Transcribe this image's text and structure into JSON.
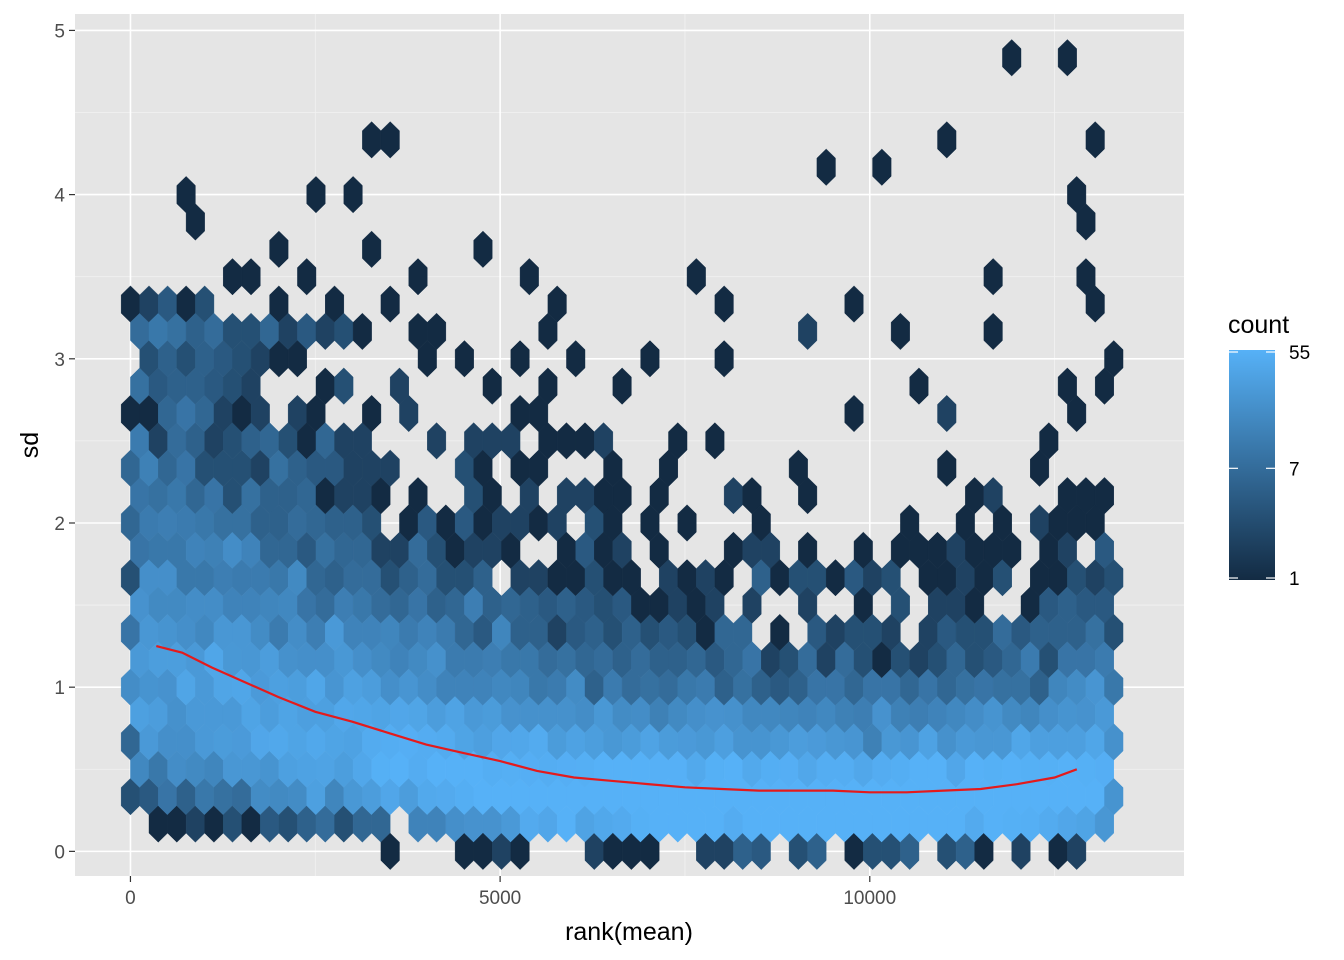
{
  "chart_data": {
    "type": "hexbin",
    "title": "",
    "xlabel": "rank(mean)",
    "ylabel": "sd",
    "xlim": [
      -750,
      14250
    ],
    "ylim": [
      -0.15,
      5.1
    ],
    "x_ticks": [
      0,
      5000,
      10000
    ],
    "x_tick_labels": [
      "0",
      "5000",
      "10000"
    ],
    "y_ticks": [
      0,
      1,
      2,
      3,
      4,
      5
    ],
    "y_tick_labels": [
      "0",
      "1",
      "2",
      "3",
      "4",
      "5"
    ],
    "grid": true,
    "panel_background": "#e5e5e5",
    "n_points": 13500,
    "hexbin_grid": {
      "x_bins": 53,
      "y_bins": 30
    },
    "fill_scale": {
      "name": "count",
      "transform": "log",
      "range": [
        1,
        55
      ],
      "breaks": [
        1,
        7,
        55
      ],
      "break_labels": [
        "1",
        "7",
        "55"
      ],
      "low_color": "#132b43",
      "high_color": "#56b1f7"
    },
    "trend_line": {
      "color": "#e41a1c",
      "points": [
        [
          350,
          1.25
        ],
        [
          700,
          1.21
        ],
        [
          1100,
          1.12
        ],
        [
          1500,
          1.04
        ],
        [
          2000,
          0.94
        ],
        [
          2500,
          0.85
        ],
        [
          3000,
          0.79
        ],
        [
          3500,
          0.72
        ],
        [
          4000,
          0.65
        ],
        [
          4500,
          0.6
        ],
        [
          5000,
          0.55
        ],
        [
          5500,
          0.49
        ],
        [
          6000,
          0.45
        ],
        [
          6500,
          0.43
        ],
        [
          7000,
          0.41
        ],
        [
          7500,
          0.39
        ],
        [
          8000,
          0.38
        ],
        [
          8500,
          0.37
        ],
        [
          9000,
          0.37
        ],
        [
          9500,
          0.37
        ],
        [
          10000,
          0.36
        ],
        [
          10500,
          0.36
        ],
        [
          11000,
          0.37
        ],
        [
          11500,
          0.38
        ],
        [
          12000,
          0.41
        ],
        [
          12500,
          0.45
        ],
        [
          12800,
          0.5
        ]
      ]
    },
    "outliers": [
      [
        700,
        3.92
      ],
      [
        800,
        3.84
      ],
      [
        2500,
        3.92
      ],
      [
        2900,
        4.01
      ],
      [
        3300,
        3.76
      ],
      [
        3300,
        4.26
      ],
      [
        3550,
        4.42
      ],
      [
        4800,
        3.59
      ],
      [
        5400,
        3.59
      ],
      [
        7700,
        3.59
      ],
      [
        9450,
        4.17
      ],
      [
        10250,
        4.17
      ],
      [
        11050,
        4.34
      ],
      [
        11850,
        4.84
      ],
      [
        12650,
        4.84
      ],
      [
        12950,
        4.34
      ],
      [
        12800,
        3.92
      ],
      [
        12950,
        3.84
      ],
      [
        12950,
        3.5
      ],
      [
        2000,
        3.59
      ],
      [
        1300,
        3.5
      ],
      [
        1600,
        3.5
      ],
      [
        2400,
        3.59
      ],
      [
        4000,
        3.5
      ],
      [
        5800,
        3.42
      ],
      [
        8150,
        3.34
      ],
      [
        9700,
        3.34
      ],
      [
        11700,
        3.42
      ],
      [
        10400,
        3.09
      ],
      [
        7000,
        3.09
      ],
      [
        8050,
        2.92
      ],
      [
        6700,
        2.75
      ],
      [
        10950,
        2.67
      ],
      [
        9850,
        2.67
      ],
      [
        5300,
        3.09
      ]
    ],
    "low_stragglers": [
      [
        3550,
        0.09
      ],
      [
        5650,
        0.09
      ],
      [
        8100,
        0.09
      ],
      [
        6400,
        0.09
      ],
      [
        13300,
        0.42
      ],
      [
        850,
        0.25
      ],
      [
        400,
        0.5
      ],
      [
        200,
        0.75
      ],
      [
        12000,
        0.09
      ],
      [
        12900,
        0.09
      ]
    ]
  }
}
